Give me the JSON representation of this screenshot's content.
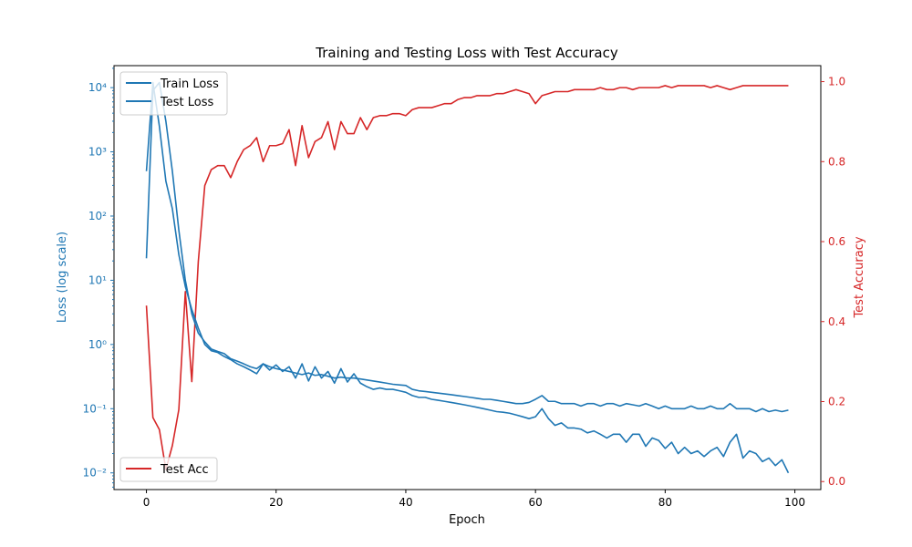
{
  "chart_data": {
    "type": "line",
    "title": "Training and Testing Loss with Test Accuracy",
    "xlabel": "Epoch",
    "ylabel_left": "Loss (log scale)",
    "ylabel_right": "Test Accuracy",
    "xlim": [
      -5,
      104
    ],
    "ylim_left": [
      0.0055,
      22000
    ],
    "yscale_left": "log",
    "ylim_right": [
      -0.02,
      1.04
    ],
    "xticks": [
      0,
      20,
      40,
      60,
      80,
      100
    ],
    "yticks_left": [
      {
        "value": 0.01,
        "label": "10⁻²"
      },
      {
        "value": 0.1,
        "label": "10⁻¹"
      },
      {
        "value": 1,
        "label": "10⁰"
      },
      {
        "value": 10,
        "label": "10¹"
      },
      {
        "value": 100,
        "label": "10²"
      },
      {
        "value": 1000,
        "label": "10³"
      },
      {
        "value": 10000,
        "label": "10⁴"
      }
    ],
    "yticks_right": [
      0.0,
      0.2,
      0.4,
      0.6,
      0.8,
      1.0
    ],
    "colors": {
      "loss": "#1f77b4",
      "acc": "#d62728"
    },
    "legend_left": {
      "placement": "upper-left",
      "entries": [
        "Train Loss",
        "Test Loss"
      ]
    },
    "legend_right": {
      "placement": "lower-left",
      "entries": [
        "Test Acc"
      ]
    },
    "x": [
      0,
      1,
      2,
      3,
      4,
      5,
      6,
      7,
      8,
      9,
      10,
      11,
      12,
      13,
      14,
      15,
      16,
      17,
      18,
      19,
      20,
      21,
      22,
      23,
      24,
      25,
      26,
      27,
      28,
      29,
      30,
      31,
      32,
      33,
      34,
      35,
      36,
      37,
      38,
      39,
      40,
      41,
      42,
      43,
      44,
      45,
      46,
      47,
      48,
      49,
      50,
      51,
      52,
      53,
      54,
      55,
      56,
      57,
      58,
      59,
      60,
      61,
      62,
      63,
      64,
      65,
      66,
      67,
      68,
      69,
      70,
      71,
      72,
      73,
      74,
      75,
      76,
      77,
      78,
      79,
      80,
      81,
      82,
      83,
      84,
      85,
      86,
      87,
      88,
      89,
      90,
      91,
      92,
      93,
      94,
      95,
      96,
      97,
      98,
      99
    ],
    "series": [
      {
        "name": "Train Loss",
        "axis": "left",
        "values": [
          22,
          9000,
          12000,
          3000,
          500,
          60,
          10,
          3,
          1.5,
          1.1,
          0.85,
          0.78,
          0.72,
          0.6,
          0.55,
          0.5,
          0.45,
          0.42,
          0.5,
          0.45,
          0.42,
          0.4,
          0.38,
          0.36,
          0.34,
          0.36,
          0.33,
          0.34,
          0.32,
          0.3,
          0.31,
          0.3,
          0.3,
          0.29,
          0.28,
          0.27,
          0.26,
          0.25,
          0.24,
          0.235,
          0.23,
          0.2,
          0.19,
          0.185,
          0.18,
          0.175,
          0.17,
          0.165,
          0.16,
          0.155,
          0.15,
          0.145,
          0.14,
          0.14,
          0.135,
          0.13,
          0.125,
          0.12,
          0.12,
          0.125,
          0.14,
          0.16,
          0.13,
          0.13,
          0.12,
          0.12,
          0.12,
          0.11,
          0.12,
          0.12,
          0.11,
          0.12,
          0.12,
          0.11,
          0.12,
          0.115,
          0.11,
          0.12,
          0.11,
          0.1,
          0.11,
          0.1,
          0.1,
          0.1,
          0.11,
          0.1,
          0.1,
          0.11,
          0.1,
          0.1,
          0.12,
          0.1,
          0.1,
          0.1,
          0.09,
          0.1,
          0.09,
          0.095,
          0.09,
          0.095
        ]
      },
      {
        "name": "Test Loss",
        "axis": "left",
        "values": [
          500,
          12000,
          2500,
          350,
          130,
          25,
          8,
          3.5,
          1.8,
          1.0,
          0.8,
          0.75,
          0.65,
          0.58,
          0.5,
          0.45,
          0.4,
          0.35,
          0.5,
          0.4,
          0.48,
          0.38,
          0.45,
          0.3,
          0.5,
          0.27,
          0.45,
          0.3,
          0.38,
          0.25,
          0.42,
          0.26,
          0.35,
          0.25,
          0.22,
          0.2,
          0.21,
          0.2,
          0.2,
          0.19,
          0.18,
          0.16,
          0.15,
          0.15,
          0.14,
          0.135,
          0.13,
          0.125,
          0.12,
          0.115,
          0.11,
          0.105,
          0.1,
          0.095,
          0.09,
          0.088,
          0.085,
          0.08,
          0.075,
          0.07,
          0.075,
          0.1,
          0.07,
          0.055,
          0.06,
          0.05,
          0.05,
          0.048,
          0.042,
          0.045,
          0.04,
          0.035,
          0.04,
          0.04,
          0.03,
          0.04,
          0.04,
          0.026,
          0.035,
          0.032,
          0.024,
          0.03,
          0.02,
          0.025,
          0.02,
          0.022,
          0.018,
          0.022,
          0.025,
          0.018,
          0.03,
          0.04,
          0.017,
          0.022,
          0.02,
          0.015,
          0.017,
          0.013,
          0.016,
          0.01
        ]
      },
      {
        "name": "Test Acc",
        "axis": "right",
        "values": [
          0.44,
          0.16,
          0.13,
          0.03,
          0.09,
          0.18,
          0.475,
          0.25,
          0.55,
          0.74,
          0.78,
          0.79,
          0.79,
          0.76,
          0.8,
          0.83,
          0.84,
          0.86,
          0.8,
          0.84,
          0.84,
          0.845,
          0.88,
          0.79,
          0.89,
          0.81,
          0.85,
          0.86,
          0.9,
          0.83,
          0.9,
          0.87,
          0.87,
          0.91,
          0.88,
          0.91,
          0.915,
          0.915,
          0.92,
          0.92,
          0.915,
          0.93,
          0.935,
          0.935,
          0.935,
          0.94,
          0.945,
          0.945,
          0.955,
          0.96,
          0.96,
          0.965,
          0.965,
          0.965,
          0.97,
          0.97,
          0.975,
          0.98,
          0.975,
          0.97,
          0.945,
          0.965,
          0.97,
          0.975,
          0.975,
          0.975,
          0.98,
          0.98,
          0.98,
          0.98,
          0.985,
          0.98,
          0.98,
          0.985,
          0.985,
          0.98,
          0.985,
          0.985,
          0.985,
          0.985,
          0.99,
          0.985,
          0.99,
          0.99,
          0.99,
          0.99,
          0.99,
          0.985,
          0.99,
          0.985,
          0.98,
          0.985,
          0.99,
          0.99,
          0.99,
          0.99,
          0.99,
          0.99,
          0.99,
          0.99
        ]
      }
    ]
  }
}
